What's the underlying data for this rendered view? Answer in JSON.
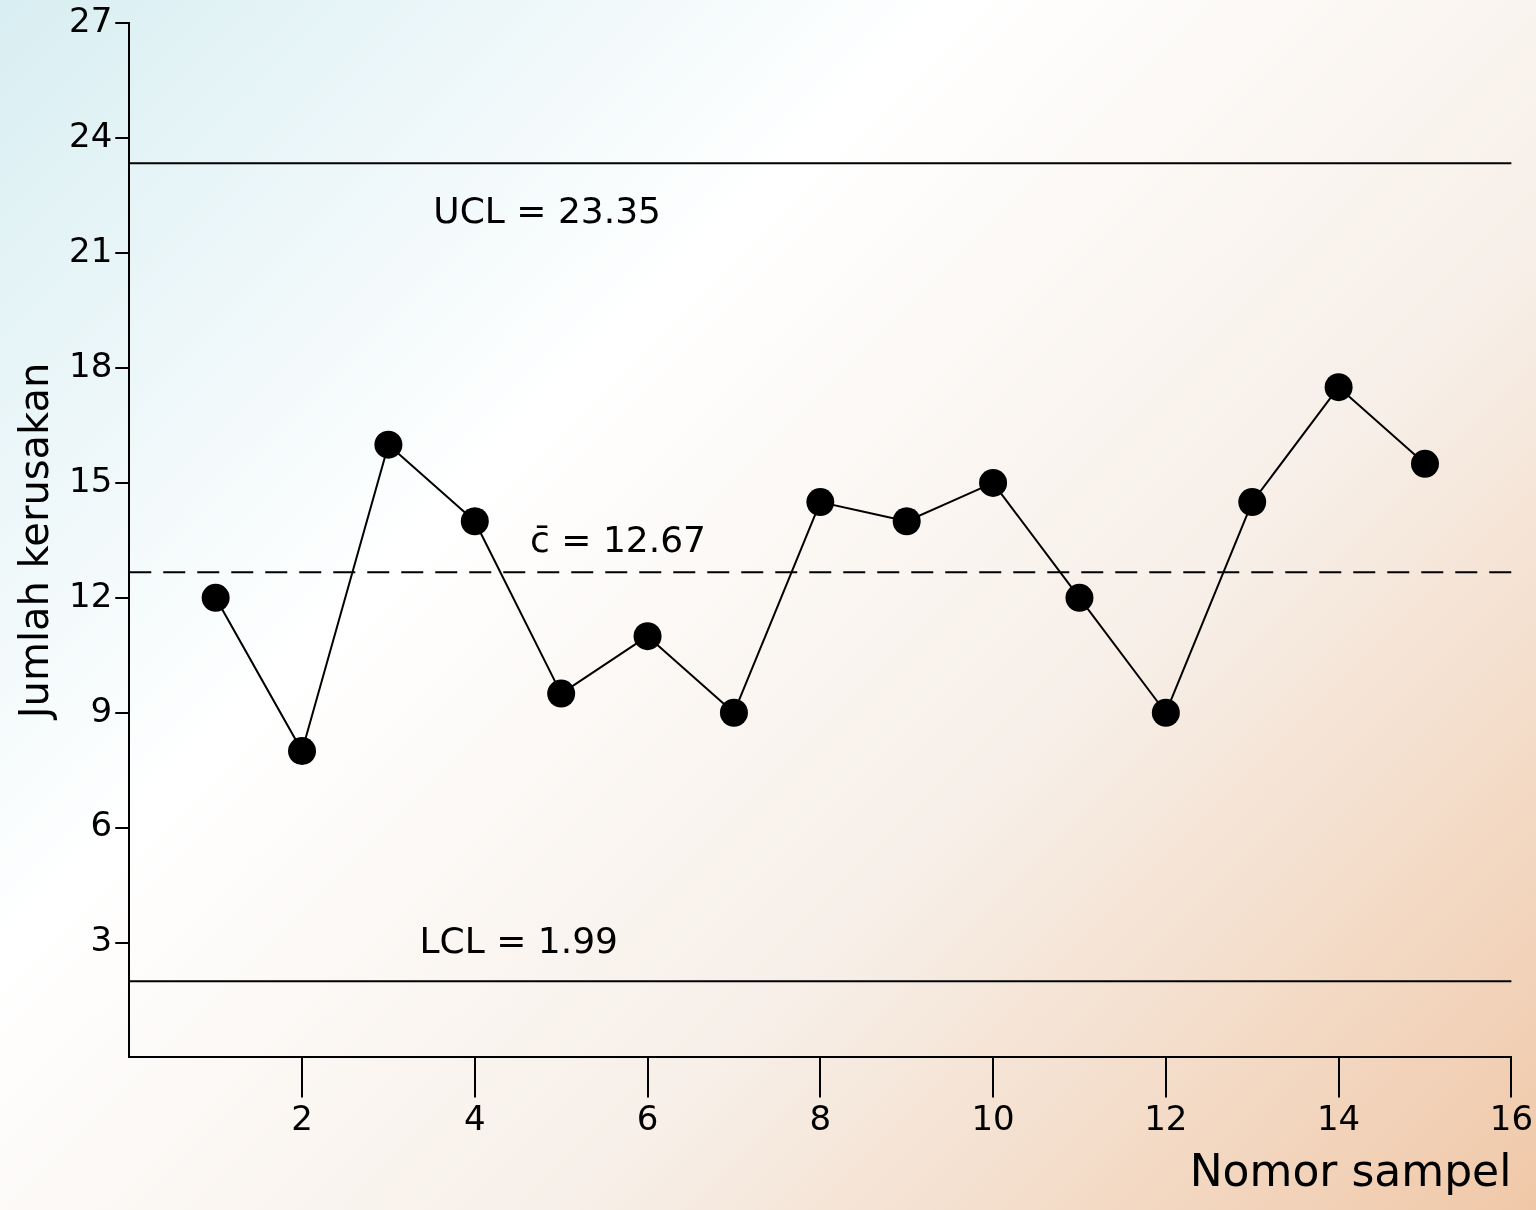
{
  "chart_data": {
    "type": "line",
    "xlabel": "Nomor sampel",
    "ylabel": "Jumlah kerusakan",
    "x": [
      1,
      2,
      3,
      4,
      5,
      6,
      7,
      8,
      9,
      10,
      11,
      12,
      13,
      14,
      15
    ],
    "series": [
      {
        "color": "#000000",
        "values": [
          12,
          8,
          16,
          14,
          9.5,
          11,
          9,
          14.5,
          14,
          15,
          12,
          9,
          14.5,
          17.5,
          15.5
        ]
      }
    ],
    "xlim": [
      0,
      16
    ],
    "xticks": [
      2,
      4,
      6,
      8,
      10,
      12,
      14,
      16
    ],
    "ylim": [
      0,
      27
    ],
    "yticks": [
      3,
      6,
      9,
      12,
      15,
      18,
      21,
      24,
      27
    ],
    "ref_lines": [
      {
        "axis": "y",
        "value": 23.35,
        "label": "UCL = 23.35",
        "color": "#000000",
        "line_style": "solid"
      },
      {
        "axis": "y",
        "value": 12.67,
        "label": "c̄ = 12.67",
        "color": "#000000",
        "line_style": "dashed"
      },
      {
        "axis": "y",
        "value": 1.99,
        "label": "LCL = 1.99",
        "color": "#000000",
        "line_style": "solid"
      }
    ],
    "grid": false,
    "legend": false,
    "marker": "circle",
    "line_style": "solid"
  }
}
